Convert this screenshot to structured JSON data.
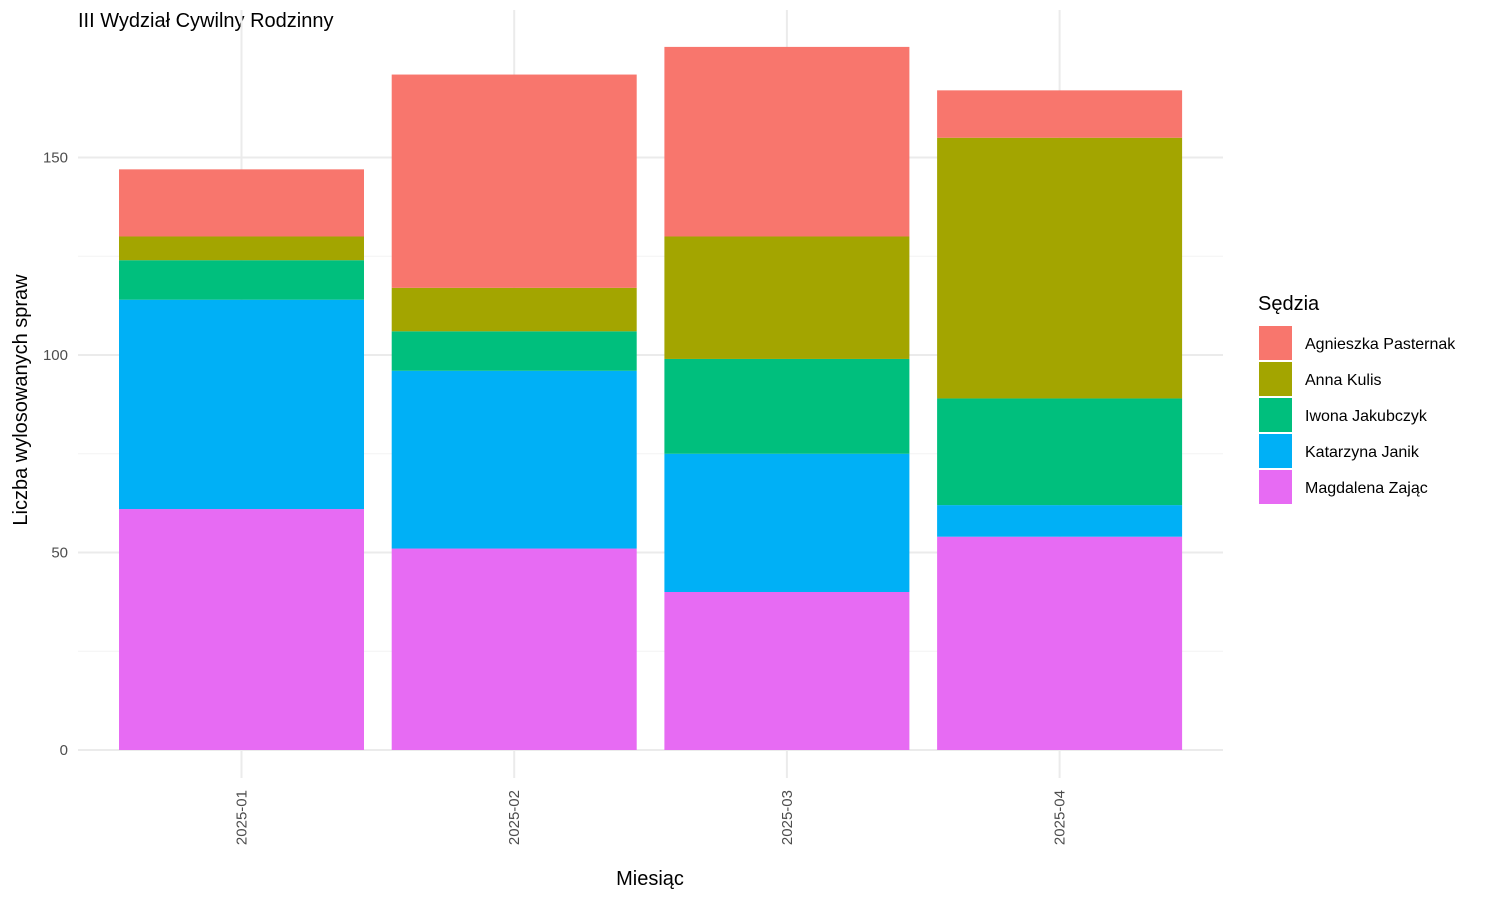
{
  "chart_data": {
    "type": "bar",
    "stacked": true,
    "title": "III Wydział Cywilny Rodzinny",
    "xlabel": "Miesiąc",
    "ylabel": "Liczba wylosowanych spraw",
    "ylim": [
      0,
      180
    ],
    "yticks": [
      0,
      50,
      100,
      150
    ],
    "grid": true,
    "legend": {
      "title": "Sędzia",
      "position": "right"
    },
    "categories": [
      "2025-01",
      "2025-02",
      "2025-03",
      "2025-04"
    ],
    "series": [
      {
        "name": "Agnieszka Pasternak",
        "color": "#F8766D",
        "values": [
          17,
          54,
          48,
          12
        ]
      },
      {
        "name": "Anna Kulis",
        "color": "#A3A500",
        "values": [
          6,
          11,
          31,
          66
        ]
      },
      {
        "name": "Iwona Jakubczyk",
        "color": "#00BF7D",
        "values": [
          10,
          10,
          24,
          27
        ]
      },
      {
        "name": "Katarzyna Janik",
        "color": "#00B0F6",
        "values": [
          53,
          45,
          35,
          8
        ]
      },
      {
        "name": "Magdalena Zając",
        "color": "#E76BF3",
        "values": [
          61,
          51,
          40,
          54
        ]
      }
    ]
  }
}
